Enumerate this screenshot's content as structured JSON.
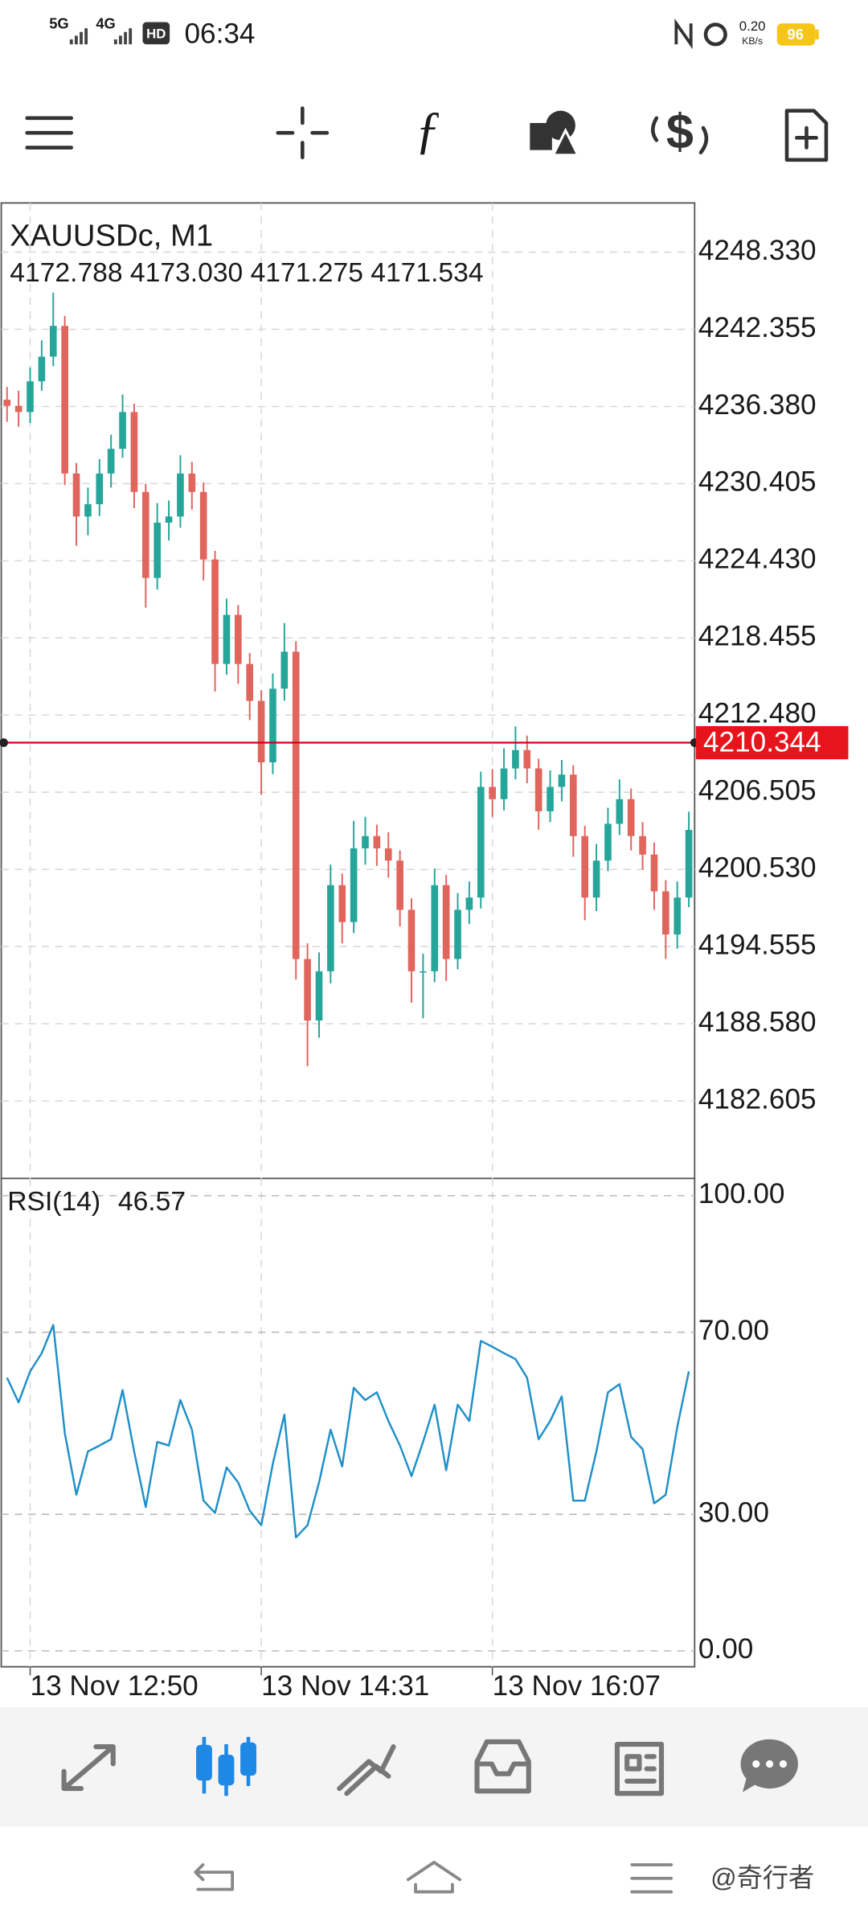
{
  "status_bar": {
    "network1": "5G",
    "network2": "4G",
    "hd": "HD",
    "time": "06:34",
    "speed": "0.20",
    "speed_unit": "KB/s",
    "battery": "96"
  },
  "chart_data": [
    {
      "type": "candlestick",
      "title": "XAUUSDc, M1",
      "subtitle": "4172.788 4173.030 4171.275 4171.534",
      "categories": [
        null,
        null,
        "13 Nov 12:50",
        null,
        null,
        null,
        null,
        null,
        null,
        null,
        null,
        null,
        null,
        null,
        null,
        null,
        null,
        null,
        null,
        null,
        null,
        null,
        "13 Nov 14:31",
        null,
        null,
        null,
        null,
        null,
        null,
        null,
        null,
        null,
        null,
        null,
        null,
        null,
        null,
        null,
        null,
        null,
        null,
        null,
        "13 Nov 16:07",
        null,
        null,
        null,
        null,
        null,
        null,
        null,
        null,
        null,
        null,
        null,
        null,
        null,
        null,
        null,
        null,
        null
      ],
      "open": [
        4236.9,
        4236.43,
        4235.95,
        4238.33,
        4240.24,
        4242.62,
        4231.19,
        4227.86,
        4228.81,
        4231.19,
        4233.1,
        4235.95,
        4229.76,
        4223.1,
        4227.38,
        4227.86,
        4231.19,
        4229.76,
        4224.53,
        4216.44,
        4220.24,
        4216.44,
        4213.58,
        4208.82,
        4214.53,
        4217.39,
        4193.59,
        4188.83,
        4192.64,
        4199.31,
        4196.45,
        4202.16,
        4203.11,
        4202.16,
        4201.21,
        4197.4,
        4192.64,
        4192.64,
        4199.31,
        4193.59,
        4197.4,
        4198.35,
        4206.92,
        4205.97,
        4208.35,
        4209.77,
        4208.35,
        4205.03,
        4206.92,
        4207.87,
        4203.11,
        4198.35,
        4201.21,
        4204.06,
        4205.97,
        4203.11,
        4201.68,
        4198.83,
        4195.49,
        4198.35
      ],
      "high": [
        4237.9,
        4237.6,
        4239.4,
        4241.5,
        4245.2,
        4243.4,
        4232.0,
        4230.1,
        4232.3,
        4234.2,
        4237.3,
        4236.6,
        4230.4,
        4228.9,
        4229.1,
        4232.6,
        4232.1,
        4230.5,
        4225.2,
        4221.5,
        4221.0,
        4217.3,
        4214.4,
        4215.7,
        4219.6,
        4218.2,
        4194.8,
        4194.1,
        4200.9,
        4200.2,
        4204.3,
        4204.6,
        4204.0,
        4203.4,
        4202.0,
        4198.3,
        4194.0,
        4200.6,
        4200.1,
        4198.7,
        4199.6,
        4208.1,
        4208.3,
        4209.9,
        4211.6,
        4210.9,
        4209.1,
        4208.2,
        4209.0,
        4208.6,
        4203.9,
        4202.5,
        4205.3,
        4207.5,
        4206.8,
        4204.2,
        4202.6,
        4199.7,
        4199.6,
        4205.0
      ],
      "low": [
        4235.2,
        4234.8,
        4235.1,
        4237.6,
        4239.5,
        4230.3,
        4225.6,
        4226.4,
        4227.9,
        4230.1,
        4232.4,
        4228.5,
        4220.8,
        4222.2,
        4226.0,
        4227.0,
        4228.4,
        4222.9,
        4214.3,
        4215.6,
        4214.9,
        4212.1,
        4206.3,
        4207.9,
        4213.6,
        4192.0,
        4185.3,
        4187.5,
        4191.7,
        4194.8,
        4195.6,
        4200.9,
        4200.8,
        4199.9,
        4196.1,
        4190.2,
        4189.0,
        4191.8,
        4191.9,
        4192.8,
        4196.3,
        4197.5,
        4204.6,
        4205.1,
        4207.5,
        4207.2,
        4203.6,
        4204.2,
        4205.8,
        4201.5,
        4196.6,
        4197.3,
        4200.4,
        4203.2,
        4202.0,
        4200.5,
        4197.4,
        4193.6,
        4194.4,
        4197.6
      ],
      "close": [
        4236.43,
        4235.95,
        4238.33,
        4240.24,
        4242.62,
        4231.19,
        4227.86,
        4228.81,
        4231.19,
        4233.1,
        4235.95,
        4229.76,
        4223.1,
        4227.38,
        4227.86,
        4231.19,
        4229.76,
        4224.53,
        4216.44,
        4220.24,
        4216.44,
        4213.58,
        4208.82,
        4214.53,
        4217.39,
        4193.59,
        4188.83,
        4192.64,
        4199.31,
        4196.45,
        4202.16,
        4203.11,
        4202.16,
        4201.21,
        4197.4,
        4192.64,
        4192.64,
        4199.31,
        4193.59,
        4197.4,
        4198.35,
        4206.92,
        4205.97,
        4208.35,
        4209.77,
        4208.35,
        4205.03,
        4206.92,
        4207.87,
        4203.11,
        4198.35,
        4201.21,
        4204.06,
        4205.97,
        4203.11,
        4201.68,
        4198.83,
        4195.49,
        4198.35,
        4203.59
      ],
      "up_color": "#26a69a",
      "down_color": "#e0655d",
      "ylim": [
        4176.6,
        4252.14
      ],
      "yticks": [
        {
          "value": 4248.33,
          "label": "4248.330"
        },
        4242.355,
        {
          "value": 4236.38,
          "label": "4236.380"
        },
        4230.405,
        {
          "value": 4224.43,
          "label": "4224.430"
        },
        4218.455,
        {
          "value": 4212.48,
          "label": "4212.480"
        },
        4206.505,
        {
          "value": 4200.53,
          "label": "4200.530"
        },
        4194.555,
        {
          "value": 4188.58,
          "label": "4188.580"
        },
        4182.605
      ],
      "grid": true,
      "price_line": {
        "value": 4210.344,
        "color": "#d0021b"
      }
    },
    {
      "type": "line",
      "title": "RSI(14)",
      "current": 46.57,
      "color": "#1f8fc9",
      "values": [
        60.0,
        54.6,
        61.4,
        65.4,
        71.6,
        47.8,
        34.3,
        43.8,
        45.1,
        46.5,
        57.3,
        43.8,
        31.6,
        45.9,
        45.1,
        55.1,
        48.6,
        33.0,
        30.3,
        40.3,
        37.0,
        30.8,
        27.6,
        41.1,
        51.9,
        24.9,
        27.6,
        37.0,
        48.6,
        40.5,
        57.8,
        55.1,
        56.8,
        50.5,
        45.1,
        38.4,
        45.9,
        54.1,
        39.7,
        54.1,
        50.5,
        68.1,
        66.8,
        65.4,
        64.1,
        60.0,
        46.5,
        50.5,
        55.9,
        33.0,
        33.0,
        43.8,
        56.8,
        58.6,
        47.0,
        44.3,
        32.4,
        34.3,
        49.2,
        61.4
      ],
      "ylim": [
        -3.5,
        103.8
      ],
      "yticks": [
        {
          "value": 100,
          "label": "100.00"
        },
        {
          "value": 70,
          "label": "70.00"
        },
        {
          "value": 30,
          "label": "30.00"
        },
        {
          "value": 0,
          "label": "0.00"
        }
      ],
      "grid": true
    }
  ],
  "watermark": "@奇行者"
}
